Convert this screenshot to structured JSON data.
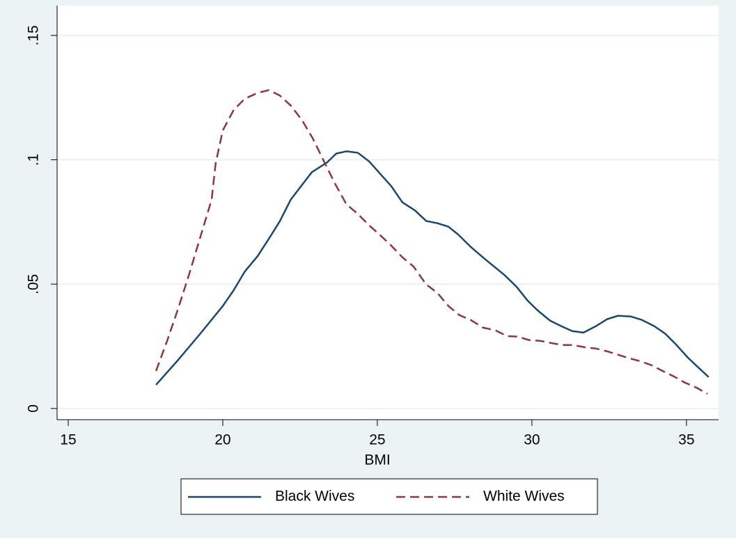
{
  "chart_data": {
    "type": "line",
    "xlabel": "BMI",
    "xlim": [
      14.64,
      36.04
    ],
    "xticks": [
      15,
      20,
      25,
      30,
      35
    ],
    "ylim": [
      -0.0045,
      0.162
    ],
    "yticks": [
      0,
      {
        "value": 0.05,
        "label": ".05"
      },
      {
        "value": 0.1,
        "label": ".1"
      },
      {
        "value": 0.15,
        "label": ".15"
      }
    ],
    "grid": true,
    "legend": "bottom",
    "series": [
      {
        "name": "Black Wives",
        "color": "#1a476f",
        "dash": false,
        "x": [
          17.84,
          18.54,
          19.28,
          20,
          20.34,
          20.72,
          21.13,
          21.58,
          21.85,
          22.2,
          22.88,
          23.38,
          23.67,
          24.0,
          24.37,
          24.73,
          25.09,
          25.45,
          25.81,
          26.22,
          26.58,
          26.94,
          27.3,
          27.61,
          28.02,
          28.47,
          29.1,
          29.5,
          29.86,
          30.18,
          30.59,
          30.95,
          31.31,
          31.67,
          32.07,
          32.43,
          32.79,
          33.2,
          33.56,
          33.96,
          34.32,
          34.68,
          35.05,
          35.41,
          35.72
        ],
        "values": [
          0.0095,
          0.0193,
          0.0302,
          0.0412,
          0.0473,
          0.0552,
          0.0613,
          0.07,
          0.0754,
          0.084,
          0.095,
          0.099,
          0.1025,
          0.1034,
          0.1028,
          0.0994,
          0.0944,
          0.0894,
          0.0829,
          0.0796,
          0.0754,
          0.0745,
          0.0731,
          0.07,
          0.065,
          0.0602,
          0.0538,
          0.049,
          0.0434,
          0.0395,
          0.0353,
          0.0331,
          0.0311,
          0.0305,
          0.0331,
          0.0359,
          0.0373,
          0.037,
          0.0356,
          0.0331,
          0.03,
          0.0255,
          0.0204,
          0.0162,
          0.0126
        ]
      },
      {
        "name": "White Wives",
        "color": "#90353b",
        "dash": true,
        "x": [
          17.84,
          18.2,
          18.56,
          18.92,
          19.28,
          19.64,
          19.77,
          20,
          20.36,
          20.72,
          21.13,
          21.49,
          21.85,
          22.2,
          22.56,
          22.92,
          23.28,
          23.64,
          24.0,
          24.37,
          24.73,
          25.09,
          25.45,
          25.81,
          26.17,
          26.58,
          26.94,
          27.3,
          27.66,
          28.02,
          28.42,
          28.83,
          29.19,
          29.55,
          29.91,
          30.27,
          30.63,
          30.99,
          31.35,
          31.71,
          32.07,
          32.43,
          32.79,
          33.15,
          33.51,
          33.87,
          34.23,
          34.59,
          34.95,
          35.32,
          35.68
        ],
        "values": [
          0.0151,
          0.0272,
          0.0403,
          0.0543,
          0.0692,
          0.084,
          0.0986,
          0.1118,
          0.1202,
          0.1246,
          0.1269,
          0.128,
          0.1258,
          0.1218,
          0.116,
          0.1084,
          0.0992,
          0.0902,
          0.0821,
          0.0782,
          0.0737,
          0.0697,
          0.0655,
          0.0608,
          0.0571,
          0.0499,
          0.0465,
          0.0412,
          0.0375,
          0.0356,
          0.0325,
          0.0314,
          0.0291,
          0.0289,
          0.0275,
          0.0272,
          0.0263,
          0.0255,
          0.0255,
          0.0246,
          0.0241,
          0.023,
          0.0216,
          0.0202,
          0.019,
          0.0174,
          0.0151,
          0.0129,
          0.0104,
          0.0084,
          0.0059
        ]
      }
    ]
  }
}
